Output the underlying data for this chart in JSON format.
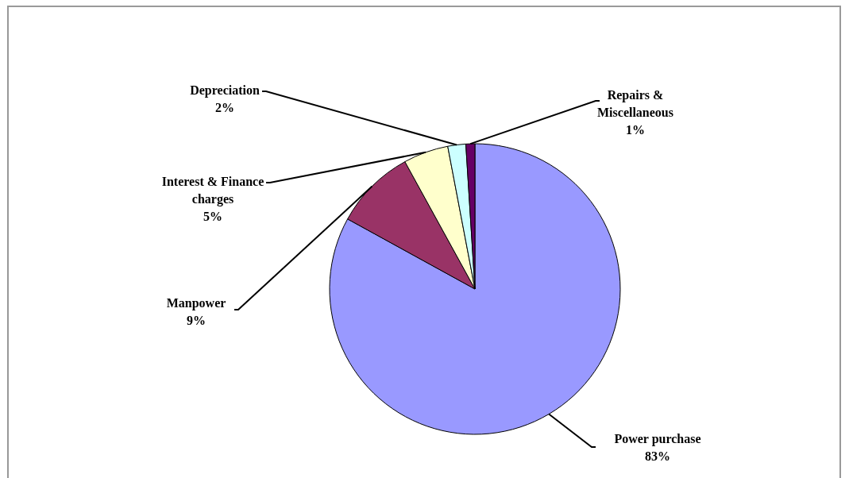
{
  "chart_data": {
    "type": "pie",
    "categories": [
      "Power purchase",
      "Manpower",
      "Interest & Finance charges",
      "Depreciation",
      "Repairs & Miscellaneous"
    ],
    "values": [
      83,
      9,
      5,
      2,
      1
    ],
    "value_labels": [
      "83%",
      "9%",
      "5%",
      "2%",
      "1%"
    ],
    "colors": [
      "#9999ff",
      "#993366",
      "#ffffcc",
      "#ccffff",
      "#660066"
    ]
  }
}
